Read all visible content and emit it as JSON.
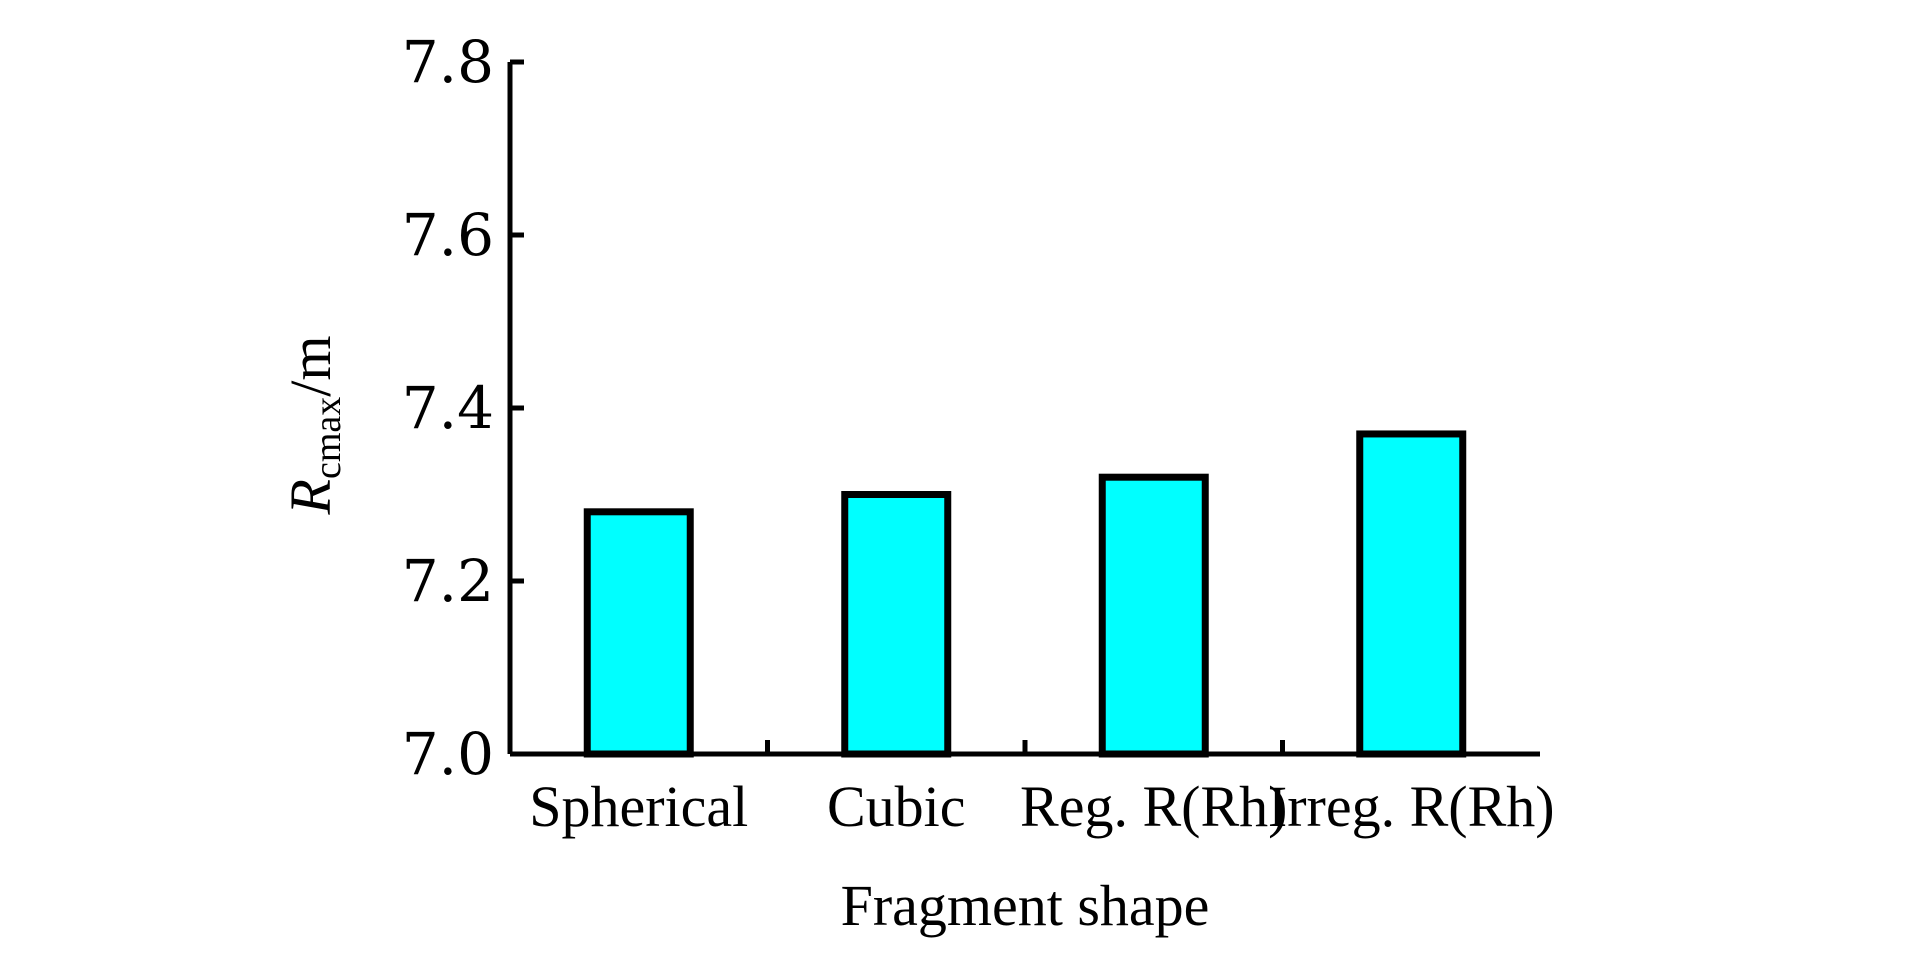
{
  "chart_data": {
    "type": "bar",
    "categories": [
      "Spherical",
      "Cubic",
      "Reg. R(Rh)",
      "Irreg. R(Rh)"
    ],
    "values": [
      7.28,
      7.3,
      7.32,
      7.37
    ],
    "xlabel": "Fragment shape",
    "ylabel": {
      "main": "R",
      "sub": "cmax",
      "unit": "/m"
    },
    "ylim": [
      7.0,
      7.8
    ],
    "yticks": [
      "7.0",
      "7.2",
      "7.4",
      "7.6",
      "7.8"
    ],
    "bar_color": "#00ffff",
    "grid": false
  }
}
